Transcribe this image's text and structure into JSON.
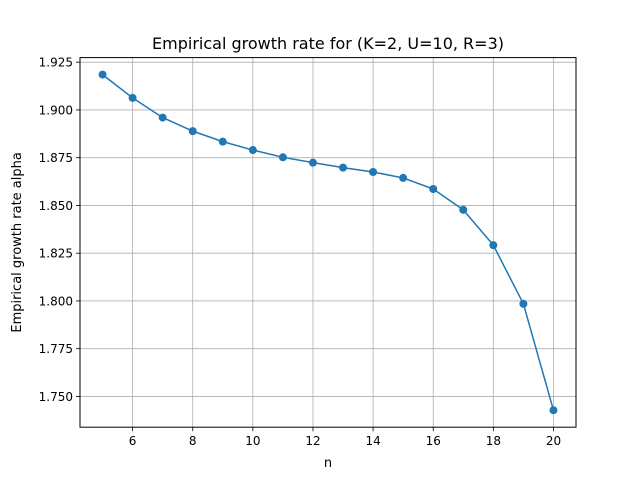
{
  "chart_data": {
    "type": "line",
    "title": "Empirical growth rate for (K=2, U=10, R=3)",
    "xlabel": "n",
    "ylabel": "Empirical growth rate alpha",
    "x": [
      5,
      6,
      7,
      8,
      9,
      10,
      11,
      12,
      13,
      14,
      15,
      16,
      17,
      18,
      19,
      20
    ],
    "series": [
      {
        "values": [
          1.9185,
          1.9063,
          1.896,
          1.8889,
          1.8834,
          1.879,
          1.8752,
          1.8724,
          1.8698,
          1.8675,
          1.8644,
          1.8586,
          1.8477,
          1.8292,
          1.7985,
          1.7428
        ]
      }
    ],
    "xlim": [
      4.25,
      20.75
    ],
    "ylim": [
      1.7339,
      1.9274
    ],
    "xticks": [
      6,
      8,
      10,
      12,
      14,
      16,
      18,
      20
    ],
    "yticks": [
      1.75,
      1.775,
      1.8,
      1.825,
      1.85,
      1.875,
      1.9,
      1.925
    ],
    "xtick_labels": [
      "6",
      "8",
      "10",
      "12",
      "14",
      "16",
      "18",
      "20"
    ],
    "ytick_labels": [
      "1.750",
      "1.775",
      "1.800",
      "1.825",
      "1.850",
      "1.875",
      "1.900",
      "1.925"
    ],
    "grid": true,
    "line_color": "#1f77b4",
    "marker": "circle"
  }
}
